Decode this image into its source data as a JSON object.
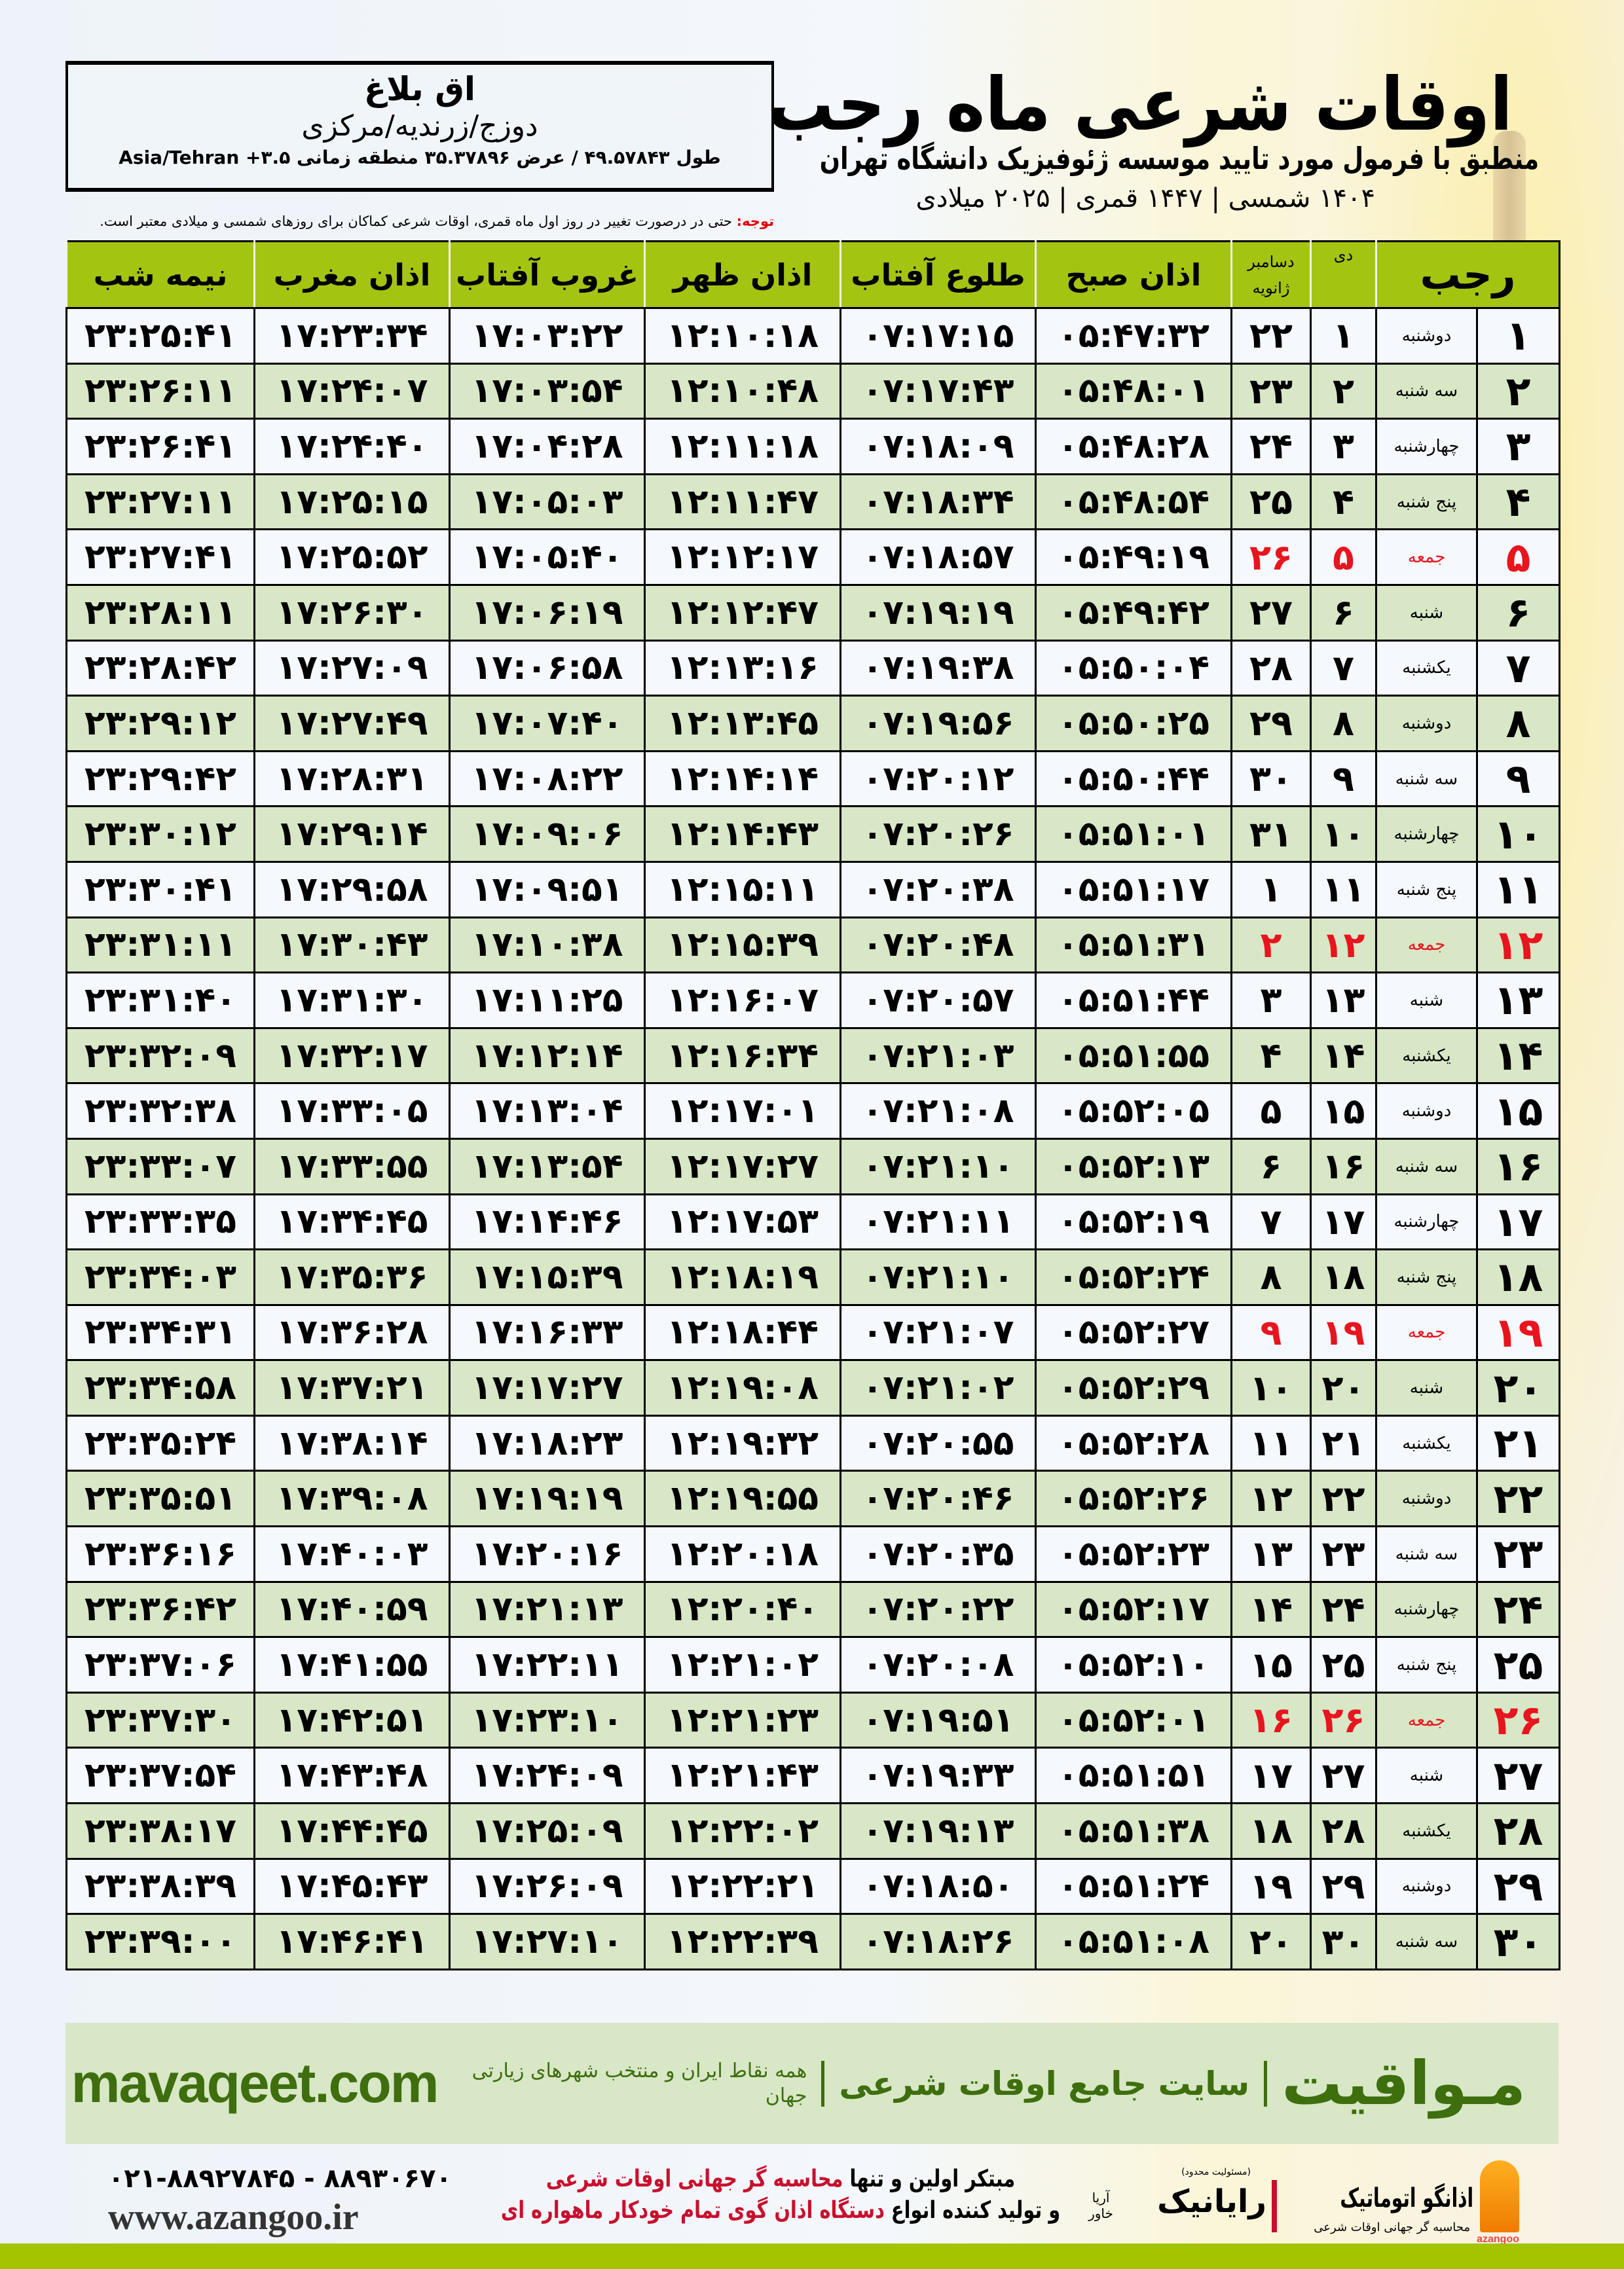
{
  "header": {
    "title": "اوقات شرعی ماه رجب",
    "subtitle": "منطبق با فرمول مورد تایید موسسه ژئوفیزیک دانشگاه تهران",
    "dateline": "۱۴۰۴ شمسی | ۱۴۴۷ قمری | ۲۰۲۵ میلادی"
  },
  "location": {
    "city": "اق بلاغ",
    "region": "دوزج/زرندیه/مرکزی",
    "coords": "طول ۴۹.۵۷۸۴۳ / عرض ۳۵.۳۷۸۹۶ منطقه زمانی ۳.۵+ Asia/Tehran"
  },
  "notice": {
    "label": "توجه:",
    "text": " حتی در درصورت تغییر در روز اول ماه قمری، اوقات شرعی کماکان برای روزهای شمسی و میلادی معتبر است."
  },
  "table": {
    "headers": {
      "month": "رجب",
      "dey": "دی",
      "dec": "دسامبر",
      "jan": "ژانویه",
      "fajr": "اذان صبح",
      "sunrise": "طلوع آفتاب",
      "dhuhr": "اذان ظهر",
      "sunset": "غروب آفتاب",
      "maghrib": "اذان مغرب",
      "midnight": "نیمه شب"
    },
    "holiday_color": "#e8141e",
    "header_color": "#a4c412",
    "rows": [
      {
        "n": "۱",
        "wd": "دوشنبه",
        "dey": "۱",
        "dec": "۲۲",
        "fajr": "۰۵:۴۷:۳۲",
        "sunrise": "۰۷:۱۷:۱۵",
        "dhuhr": "۱۲:۱۰:۱۸",
        "sunset": "۱۷:۰۳:۲۲",
        "maghrib": "۱۷:۲۳:۳۴",
        "midnight": "۲۳:۲۵:۴۱",
        "friday": false
      },
      {
        "n": "۲",
        "wd": "سه شنبه",
        "dey": "۲",
        "dec": "۲۳",
        "fajr": "۰۵:۴۸:۰۱",
        "sunrise": "۰۷:۱۷:۴۳",
        "dhuhr": "۱۲:۱۰:۴۸",
        "sunset": "۱۷:۰۳:۵۴",
        "maghrib": "۱۷:۲۴:۰۷",
        "midnight": "۲۳:۲۶:۱۱",
        "friday": false
      },
      {
        "n": "۳",
        "wd": "چهارشنبه",
        "dey": "۳",
        "dec": "۲۴",
        "fajr": "۰۵:۴۸:۲۸",
        "sunrise": "۰۷:۱۸:۰۹",
        "dhuhr": "۱۲:۱۱:۱۸",
        "sunset": "۱۷:۰۴:۲۸",
        "maghrib": "۱۷:۲۴:۴۰",
        "midnight": "۲۳:۲۶:۴۱",
        "friday": false
      },
      {
        "n": "۴",
        "wd": "پنج شنبه",
        "dey": "۴",
        "dec": "۲۵",
        "fajr": "۰۵:۴۸:۵۴",
        "sunrise": "۰۷:۱۸:۳۴",
        "dhuhr": "۱۲:۱۱:۴۷",
        "sunset": "۱۷:۰۵:۰۳",
        "maghrib": "۱۷:۲۵:۱۵",
        "midnight": "۲۳:۲۷:۱۱",
        "friday": false
      },
      {
        "n": "۵",
        "wd": "جمعه",
        "dey": "۵",
        "dec": "۲۶",
        "fajr": "۰۵:۴۹:۱۹",
        "sunrise": "۰۷:۱۸:۵۷",
        "dhuhr": "۱۲:۱۲:۱۷",
        "sunset": "۱۷:۰۵:۴۰",
        "maghrib": "۱۷:۲۵:۵۲",
        "midnight": "۲۳:۲۷:۴۱",
        "friday": true
      },
      {
        "n": "۶",
        "wd": "شنبه",
        "dey": "۶",
        "dec": "۲۷",
        "fajr": "۰۵:۴۹:۴۲",
        "sunrise": "۰۷:۱۹:۱۹",
        "dhuhr": "۱۲:۱۲:۴۷",
        "sunset": "۱۷:۰۶:۱۹",
        "maghrib": "۱۷:۲۶:۳۰",
        "midnight": "۲۳:۲۸:۱۱",
        "friday": false
      },
      {
        "n": "۷",
        "wd": "یکشنبه",
        "dey": "۷",
        "dec": "۲۸",
        "fajr": "۰۵:۵۰:۰۴",
        "sunrise": "۰۷:۱۹:۳۸",
        "dhuhr": "۱۲:۱۳:۱۶",
        "sunset": "۱۷:۰۶:۵۸",
        "maghrib": "۱۷:۲۷:۰۹",
        "midnight": "۲۳:۲۸:۴۲",
        "friday": false
      },
      {
        "n": "۸",
        "wd": "دوشنبه",
        "dey": "۸",
        "dec": "۲۹",
        "fajr": "۰۵:۵۰:۲۵",
        "sunrise": "۰۷:۱۹:۵۶",
        "dhuhr": "۱۲:۱۳:۴۵",
        "sunset": "۱۷:۰۷:۴۰",
        "maghrib": "۱۷:۲۷:۴۹",
        "midnight": "۲۳:۲۹:۱۲",
        "friday": false
      },
      {
        "n": "۹",
        "wd": "سه شنبه",
        "dey": "۹",
        "dec": "۳۰",
        "fajr": "۰۵:۵۰:۴۴",
        "sunrise": "۰۷:۲۰:۱۲",
        "dhuhr": "۱۲:۱۴:۱۴",
        "sunset": "۱۷:۰۸:۲۲",
        "maghrib": "۱۷:۲۸:۳۱",
        "midnight": "۲۳:۲۹:۴۲",
        "friday": false
      },
      {
        "n": "۱۰",
        "wd": "چهارشنبه",
        "dey": "۱۰",
        "dec": "۳۱",
        "fajr": "۰۵:۵۱:۰۱",
        "sunrise": "۰۷:۲۰:۲۶",
        "dhuhr": "۱۲:۱۴:۴۳",
        "sunset": "۱۷:۰۹:۰۶",
        "maghrib": "۱۷:۲۹:۱۴",
        "midnight": "۲۳:۳۰:۱۲",
        "friday": false
      },
      {
        "n": "۱۱",
        "wd": "پنج شنبه",
        "dey": "۱۱",
        "dec": "۱",
        "fajr": "۰۵:۵۱:۱۷",
        "sunrise": "۰۷:۲۰:۳۸",
        "dhuhr": "۱۲:۱۵:۱۱",
        "sunset": "۱۷:۰۹:۵۱",
        "maghrib": "۱۷:۲۹:۵۸",
        "midnight": "۲۳:۳۰:۴۱",
        "friday": false
      },
      {
        "n": "۱۲",
        "wd": "جمعه",
        "dey": "۱۲",
        "dec": "۲",
        "fajr": "۰۵:۵۱:۳۱",
        "sunrise": "۰۷:۲۰:۴۸",
        "dhuhr": "۱۲:۱۵:۳۹",
        "sunset": "۱۷:۱۰:۳۸",
        "maghrib": "۱۷:۳۰:۴۳",
        "midnight": "۲۳:۳۱:۱۱",
        "friday": true
      },
      {
        "n": "۱۳",
        "wd": "شنبه",
        "dey": "۱۳",
        "dec": "۳",
        "fajr": "۰۵:۵۱:۴۴",
        "sunrise": "۰۷:۲۰:۵۷",
        "dhuhr": "۱۲:۱۶:۰۷",
        "sunset": "۱۷:۱۱:۲۵",
        "maghrib": "۱۷:۳۱:۳۰",
        "midnight": "۲۳:۳۱:۴۰",
        "friday": false
      },
      {
        "n": "۱۴",
        "wd": "یکشنبه",
        "dey": "۱۴",
        "dec": "۴",
        "fajr": "۰۵:۵۱:۵۵",
        "sunrise": "۰۷:۲۱:۰۳",
        "dhuhr": "۱۲:۱۶:۳۴",
        "sunset": "۱۷:۱۲:۱۴",
        "maghrib": "۱۷:۳۲:۱۷",
        "midnight": "۲۳:۳۲:۰۹",
        "friday": false
      },
      {
        "n": "۱۵",
        "wd": "دوشنبه",
        "dey": "۱۵",
        "dec": "۵",
        "fajr": "۰۵:۵۲:۰۵",
        "sunrise": "۰۷:۲۱:۰۸",
        "dhuhr": "۱۲:۱۷:۰۱",
        "sunset": "۱۷:۱۳:۰۴",
        "maghrib": "۱۷:۳۳:۰۵",
        "midnight": "۲۳:۳۲:۳۸",
        "friday": false
      },
      {
        "n": "۱۶",
        "wd": "سه شنبه",
        "dey": "۱۶",
        "dec": "۶",
        "fajr": "۰۵:۵۲:۱۳",
        "sunrise": "۰۷:۲۱:۱۰",
        "dhuhr": "۱۲:۱۷:۲۷",
        "sunset": "۱۷:۱۳:۵۴",
        "maghrib": "۱۷:۳۳:۵۵",
        "midnight": "۲۳:۳۳:۰۷",
        "friday": false
      },
      {
        "n": "۱۷",
        "wd": "چهارشنبه",
        "dey": "۱۷",
        "dec": "۷",
        "fajr": "۰۵:۵۲:۱۹",
        "sunrise": "۰۷:۲۱:۱۱",
        "dhuhr": "۱۲:۱۷:۵۳",
        "sunset": "۱۷:۱۴:۴۶",
        "maghrib": "۱۷:۳۴:۴۵",
        "midnight": "۲۳:۳۳:۳۵",
        "friday": false
      },
      {
        "n": "۱۸",
        "wd": "پنج شنبه",
        "dey": "۱۸",
        "dec": "۸",
        "fajr": "۰۵:۵۲:۲۴",
        "sunrise": "۰۷:۲۱:۱۰",
        "dhuhr": "۱۲:۱۸:۱۹",
        "sunset": "۱۷:۱۵:۳۹",
        "maghrib": "۱۷:۳۵:۳۶",
        "midnight": "۲۳:۳۴:۰۳",
        "friday": false
      },
      {
        "n": "۱۹",
        "wd": "جمعه",
        "dey": "۱۹",
        "dec": "۹",
        "fajr": "۰۵:۵۲:۲۷",
        "sunrise": "۰۷:۲۱:۰۷",
        "dhuhr": "۱۲:۱۸:۴۴",
        "sunset": "۱۷:۱۶:۳۳",
        "maghrib": "۱۷:۳۶:۲۸",
        "midnight": "۲۳:۳۴:۳۱",
        "friday": true
      },
      {
        "n": "۲۰",
        "wd": "شنبه",
        "dey": "۲۰",
        "dec": "۱۰",
        "fajr": "۰۵:۵۲:۲۹",
        "sunrise": "۰۷:۲۱:۰۲",
        "dhuhr": "۱۲:۱۹:۰۸",
        "sunset": "۱۷:۱۷:۲۷",
        "maghrib": "۱۷:۳۷:۲۱",
        "midnight": "۲۳:۳۴:۵۸",
        "friday": false
      },
      {
        "n": "۲۱",
        "wd": "یکشنبه",
        "dey": "۲۱",
        "dec": "۱۱",
        "fajr": "۰۵:۵۲:۲۸",
        "sunrise": "۰۷:۲۰:۵۵",
        "dhuhr": "۱۲:۱۹:۳۲",
        "sunset": "۱۷:۱۸:۲۳",
        "maghrib": "۱۷:۳۸:۱۴",
        "midnight": "۲۳:۳۵:۲۴",
        "friday": false
      },
      {
        "n": "۲۲",
        "wd": "دوشنبه",
        "dey": "۲۲",
        "dec": "۱۲",
        "fajr": "۰۵:۵۲:۲۶",
        "sunrise": "۰۷:۲۰:۴۶",
        "dhuhr": "۱۲:۱۹:۵۵",
        "sunset": "۱۷:۱۹:۱۹",
        "maghrib": "۱۷:۳۹:۰۸",
        "midnight": "۲۳:۳۵:۵۱",
        "friday": false
      },
      {
        "n": "۲۳",
        "wd": "سه شنبه",
        "dey": "۲۳",
        "dec": "۱۳",
        "fajr": "۰۵:۵۲:۲۳",
        "sunrise": "۰۷:۲۰:۳۵",
        "dhuhr": "۱۲:۲۰:۱۸",
        "sunset": "۱۷:۲۰:۱۶",
        "maghrib": "۱۷:۴۰:۰۳",
        "midnight": "۲۳:۳۶:۱۶",
        "friday": false
      },
      {
        "n": "۲۴",
        "wd": "چهارشنبه",
        "dey": "۲۴",
        "dec": "۱۴",
        "fajr": "۰۵:۵۲:۱۷",
        "sunrise": "۰۷:۲۰:۲۲",
        "dhuhr": "۱۲:۲۰:۴۰",
        "sunset": "۱۷:۲۱:۱۳",
        "maghrib": "۱۷:۴۰:۵۹",
        "midnight": "۲۳:۳۶:۴۲",
        "friday": false
      },
      {
        "n": "۲۵",
        "wd": "پنج شنبه",
        "dey": "۲۵",
        "dec": "۱۵",
        "fajr": "۰۵:۵۲:۱۰",
        "sunrise": "۰۷:۲۰:۰۸",
        "dhuhr": "۱۲:۲۱:۰۲",
        "sunset": "۱۷:۲۲:۱۱",
        "maghrib": "۱۷:۴۱:۵۵",
        "midnight": "۲۳:۳۷:۰۶",
        "friday": false
      },
      {
        "n": "۲۶",
        "wd": "جمعه",
        "dey": "۲۶",
        "dec": "۱۶",
        "fajr": "۰۵:۵۲:۰۱",
        "sunrise": "۰۷:۱۹:۵۱",
        "dhuhr": "۱۲:۲۱:۲۳",
        "sunset": "۱۷:۲۳:۱۰",
        "maghrib": "۱۷:۴۲:۵۱",
        "midnight": "۲۳:۳۷:۳۰",
        "friday": true
      },
      {
        "n": "۲۷",
        "wd": "شنبه",
        "dey": "۲۷",
        "dec": "۱۷",
        "fajr": "۰۵:۵۱:۵۱",
        "sunrise": "۰۷:۱۹:۳۳",
        "dhuhr": "۱۲:۲۱:۴۳",
        "sunset": "۱۷:۲۴:۰۹",
        "maghrib": "۱۷:۴۳:۴۸",
        "midnight": "۲۳:۳۷:۵۴",
        "friday": false
      },
      {
        "n": "۲۸",
        "wd": "یکشنبه",
        "dey": "۲۸",
        "dec": "۱۸",
        "fajr": "۰۵:۵۱:۳۸",
        "sunrise": "۰۷:۱۹:۱۳",
        "dhuhr": "۱۲:۲۲:۰۲",
        "sunset": "۱۷:۲۵:۰۹",
        "maghrib": "۱۷:۴۴:۴۵",
        "midnight": "۲۳:۳۸:۱۷",
        "friday": false
      },
      {
        "n": "۲۹",
        "wd": "دوشنبه",
        "dey": "۲۹",
        "dec": "۱۹",
        "fajr": "۰۵:۵۱:۲۴",
        "sunrise": "۰۷:۱۸:۵۰",
        "dhuhr": "۱۲:۲۲:۲۱",
        "sunset": "۱۷:۲۶:۰۹",
        "maghrib": "۱۷:۴۵:۴۳",
        "midnight": "۲۳:۳۸:۳۹",
        "friday": false
      },
      {
        "n": "۳۰",
        "wd": "سه شنبه",
        "dey": "۳۰",
        "dec": "۲۰",
        "fajr": "۰۵:۵۱:۰۸",
        "sunrise": "۰۷:۱۸:۲۶",
        "dhuhr": "۱۲:۲۲:۳۹",
        "sunset": "۱۷:۲۷:۱۰",
        "maghrib": "۱۷:۴۶:۴۱",
        "midnight": "۲۳:۳۹:۰۰",
        "friday": false
      }
    ]
  },
  "banner": {
    "brand": "مـواقیت",
    "tagline": "سایت جامع اوقات شرعی",
    "tagline2": "همه نقاط ایران و منتخب شهرهای زیارتی جهان",
    "url": "mavaqeet.com",
    "color": "#3e6e0e"
  },
  "footer": {
    "azangoo_name": "اذانگو اتوماتیک",
    "azangoo_sub": "محاسبه گر جهانی اوقات شرعی",
    "azangoo_latin": "azangoo",
    "rayanik_small": "(مسئولیت محدود)",
    "rayanik_name": "رایانیک",
    "rayanik_sub": "آریا خاور",
    "slogan_1a": "مبتکر اولین و تنها ",
    "slogan_1b": "محاسبه گر جهانی اوقات شرعی",
    "slogan_2a": "و تولید کننده انواع ",
    "slogan_2b": "دستگاه اذان گوی تمام خودکار ماهواره ای",
    "phone": "۰۲۱-۸۸۹۲۷۸۴۵ - ۸۸۹۳۰۶۷۰",
    "website": "www.azangoo.ir"
  }
}
